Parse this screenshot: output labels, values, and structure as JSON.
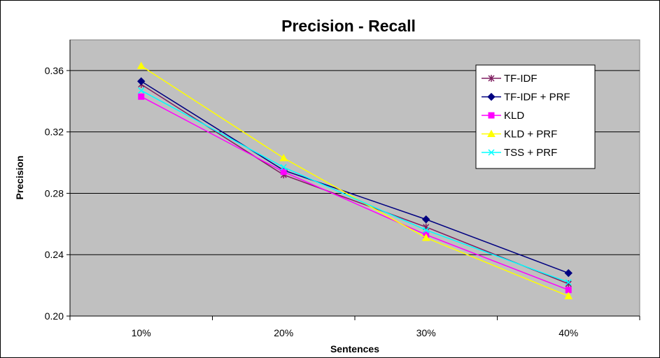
{
  "chart_data": {
    "type": "line",
    "title": "Precision - Recall",
    "xlabel": "Sentences",
    "ylabel": "Precision",
    "categories": [
      "10%",
      "20%",
      "30%",
      "40%"
    ],
    "ylim": [
      0.2,
      0.38
    ],
    "yticks": [
      0.2,
      0.24,
      0.28,
      0.32,
      0.36
    ],
    "ytick_labels": [
      "0.20",
      "0.24",
      "0.28",
      "0.32",
      "0.36"
    ],
    "grid": true,
    "legend_position": "top-right",
    "plot_background": "#c0c0c0",
    "series": [
      {
        "name": "TF-IDF",
        "values": [
          0.351,
          0.292,
          0.258,
          0.221
        ],
        "color": "#7f1f60",
        "marker": "star"
      },
      {
        "name": "TF-IDF + PRF",
        "values": [
          0.353,
          0.295,
          0.263,
          0.228
        ],
        "color": "#000080",
        "marker": "diamond"
      },
      {
        "name": "KLD",
        "values": [
          0.343,
          0.294,
          0.253,
          0.217
        ],
        "color": "#ff00ff",
        "marker": "square"
      },
      {
        "name": "KLD + PRF",
        "values": [
          0.363,
          0.303,
          0.251,
          0.213
        ],
        "color": "#ffff00",
        "marker": "triangle"
      },
      {
        "name": "TSS + PRF",
        "values": [
          0.347,
          0.297,
          0.256,
          0.222
        ],
        "color": "#00ffff",
        "marker": "x"
      }
    ]
  }
}
